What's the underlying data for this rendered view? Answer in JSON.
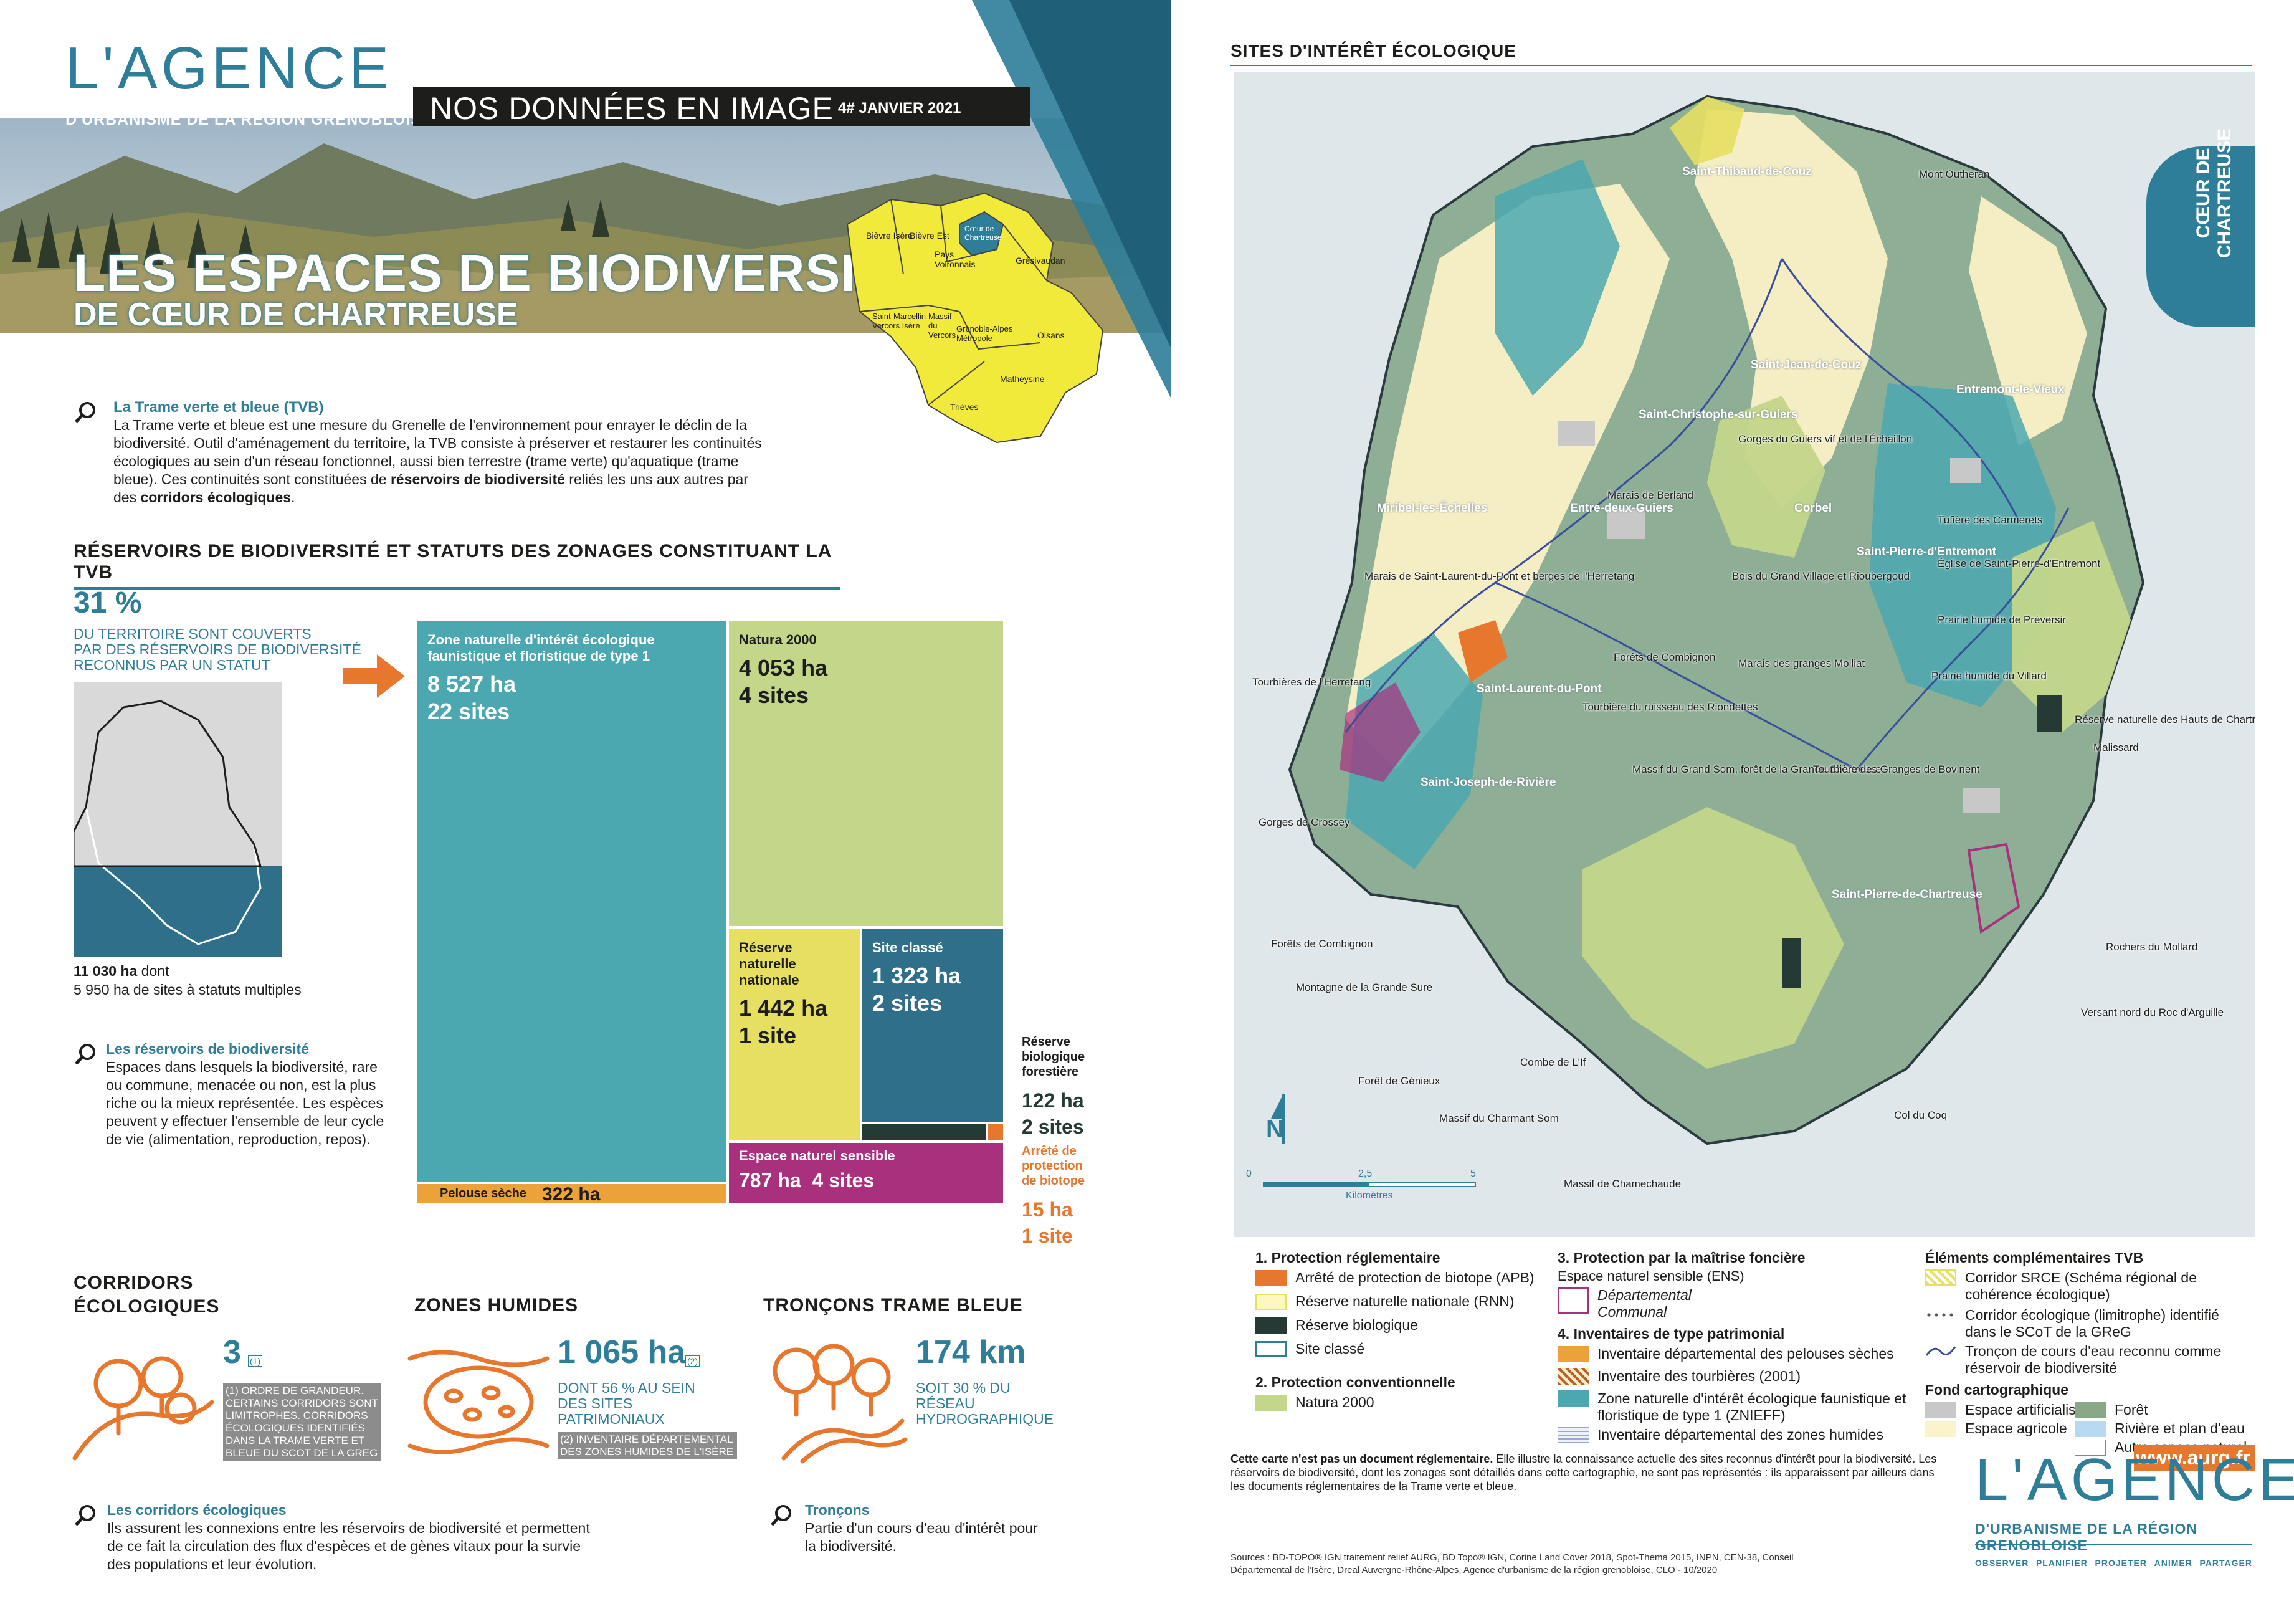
{
  "header": {
    "logo_main": "L'AGENCE",
    "logo_sub": "D'URBANISME DE LA RÉGION GRENOBLOISE",
    "band_title": "NOS DONNÉES EN IMAGE",
    "band_date": "4# JANVIER 2021",
    "title_line1": "LES ESPACES DE BIODIVERSITÉ",
    "title_line2": "DE CŒUR DE CHARTREUSE"
  },
  "region_map": {
    "labels": [
      "Bièvre Isère",
      "Bièvre Est",
      "Pays Voironnais",
      "Cœur de Chartreuse",
      "Grésivaudan",
      "Saint-Marcellin Vercors Isère",
      "Massif du Vercors",
      "Grenoble-Alpes Métropole",
      "Oisans",
      "Matheysine",
      "Trièves"
    ]
  },
  "intro": {
    "heading": "La Trame verte et bleue (TVB)",
    "text": "La Trame verte et bleue est une mesure du Grenelle de l'environnement pour enrayer le déclin de la biodiversité. Outil d'aménagement du territoire, la TVB consiste à préserver et restaurer les continuités écologiques au sein d'un réseau fonctionnel, aussi bien terrestre (trame verte) qu'aquatique (trame bleue). Ces continuités sont constituées de ",
    "bold1": "réservoirs de biodiversité",
    "mid": " reliés les uns aux autres par des ",
    "bold2": "corridors écologiques",
    "end": "."
  },
  "reservoirs": {
    "section_title": "RÉSERVOIRS DE BIODIVERSITÉ ET STATUTS DES ZONAGES CONSTITUANT LA TVB",
    "pct": "31 %",
    "pct_text1": "DU TERRITOIRE SONT COUVERTS",
    "pct_text2": "PAR DES RÉSERVOIRS DE BIODIVERSITÉ",
    "pct_text3": "RECONNUS PAR UN STATUT",
    "total": "11 030 ha",
    "total_suffix": " dont",
    "multi": "5 950 ha de sites à statuts multiples",
    "def_heading": "Les réservoirs de biodiversité",
    "def_text": "Espaces dans lesquels la biodiversité, rare ou commune, menacée ou non, est la plus riche ou la mieux représentée. Les espèces peuvent y effectuer l'ensemble de leur cycle de vie (alimentation, reproduction, repos)."
  },
  "treemap": [
    {
      "label": "Zone naturelle d'intérêt écologique faunistique et floristique de type 1",
      "ha": "8 527 ha",
      "sites": "22 sites",
      "color": "#4ba8b0"
    },
    {
      "label": "Natura 2000",
      "ha": "4 053 ha",
      "sites": "4 sites",
      "color": "#c3d68a"
    },
    {
      "label": "Réserve naturelle nationale",
      "ha": "1 442 ha",
      "sites": "1 site",
      "color": "#e6df62"
    },
    {
      "label": "Site classé",
      "ha": "1 323 ha",
      "sites": "2 sites",
      "color": "#2f6f8a"
    },
    {
      "label": "Espace naturel sensible",
      "ha": "787 ha",
      "sites": "4 sites",
      "color": "#a8307d"
    },
    {
      "label": "Pelouse sèche",
      "ha": "322 ha",
      "color": "#eba23a"
    },
    {
      "label": "Réserve biologique forestière",
      "ha": "122 ha",
      "sites": "2 sites",
      "color": "#263a35"
    },
    {
      "label": "Arrêté de protection de biotope",
      "ha": "15 ha",
      "sites": "1 site",
      "color": "#e8772e"
    }
  ],
  "indicators": {
    "corridors": {
      "title1": "CORRIDORS",
      "title2": "ÉCOLOGIQUES",
      "value": "3",
      "note_ref": "(1)",
      "note": "(1) ORDRE DE GRANDEUR. CERTAINS CORRIDORS SONT LIMITROPHES. CORRIDORS ÉCOLOGIQUES IDENTIFIÉS DANS LA TRAME VERTE ET BLEUE DU SCOT DE LA GREG"
    },
    "zones": {
      "title": "ZONES HUMIDES",
      "value": "1 065 ha",
      "note_ref": "(2)",
      "sub": "DONT 56 % AU SEIN DES SITES PATRIMONIAUX",
      "note": "(2) INVENTAIRE DÉPARTEMENTAL DES ZONES HUMIDES DE L'ISÈRE"
    },
    "troncons": {
      "title": "TRONÇONS TRAME BLEUE",
      "value": "174 km",
      "sub": "SOIT 30 % DU RÉSEAU HYDROGRAPHIQUE"
    }
  },
  "defs": {
    "corr_heading": "Les corridors écologiques",
    "corr_text": "Ils assurent les connexions entre les réservoirs de biodiversité et permettent de ce fait la circulation des flux d'espèces et de gènes vitaux pour la survie des populations et leur évolution.",
    "tron_heading": "Tronçons",
    "tron_text": "Partie d'un cours d'eau d'intérêt pour la biodiversité."
  },
  "map": {
    "title": "SITES D'INTÉRÊT ÉCOLOGIQUE",
    "tab": "CŒUR DE CHARTREUSE",
    "scale": [
      "0",
      "2,5",
      "5"
    ],
    "scale_unit": "Kilomètres",
    "towns": [
      "Saint-Thibaud-de-Couz",
      "Saint-Jean-de-Couz",
      "Saint-Christophe-sur-Guiers",
      "Entremont-le-Vieux",
      "Miribel-les-Échelles",
      "Entre-deux-Guiers",
      "Corbel",
      "Saint-Pierre-d'Entremont",
      "Saint-Laurent-du-Pont",
      "Saint-Joseph-de-Rivière",
      "Saint-Pierre-de-Chartreuse"
    ],
    "labels": [
      "Mont Outheran",
      "Gorges du Guiers vif et de l'Échaillon",
      "Marais de Berland",
      "Tufière des Carmerets",
      "Église de Saint-Pierre-d'Entremont",
      "Marais de Saint-Laurent-du-Pont et berges de l'Herretang",
      "Bois du Grand Village et Rioubergoud",
      "Prairie humide de Préversir",
      "Forêts de Combignon",
      "Marais des granges Molliat",
      "Prairie humide du Villard",
      "Tourbières de l'Herretang",
      "Tourbière du ruisseau des Riondettes",
      "Réserve naturelle des Hauts de Chartreuse",
      "Malissard",
      "Massif du Grand Som, forêt de la Grande Chartreuse",
      "Tourbière des Granges de Bovinent",
      "Gorges de Crossey",
      "Forêts de Combignon",
      "Rochers du Mollard",
      "Montagne de la Grande Sure",
      "Versant nord du Roc d'Arguille",
      "Combe de L'If",
      "Forêt de Génieux",
      "Col du Coq",
      "Massif du Charmant Som",
      "Massif de Chamechaude"
    ]
  },
  "legend": {
    "g1": {
      "title": "1. Protection réglementaire",
      "items": [
        {
          "label": "Arrêté de protection de biotope (APB)",
          "color": "#e8772e"
        },
        {
          "label": "Réserve naturelle nationale (RNN)",
          "color": "#fff7c2"
        },
        {
          "label": "Réserve biologique",
          "color": "#263a35"
        },
        {
          "label": "Site classé",
          "color": "#ffffff"
        }
      ]
    },
    "g2": {
      "title": "2. Protection conventionnelle",
      "items": [
        {
          "label": "Natura 2000",
          "color": "#c3d68a"
        }
      ]
    },
    "g3": {
      "title": "3. Protection par la maîtrise foncière",
      "sub": "Espace naturel sensible (ENS)",
      "items": [
        {
          "label": "Départemental",
          "color": "#a8307d"
        },
        {
          "label": "Communal",
          "color": "#a8307d"
        }
      ]
    },
    "g4": {
      "title": "4. Inventaires de type patrimonial",
      "items": [
        {
          "label": "Inventaire départemental des pelouses sèches",
          "color": "#eba23a"
        },
        {
          "label": "Inventaire des tourbières (2001)",
          "color": "#b8602c"
        },
        {
          "label": "Zone naturelle d'intérêt écologique faunistique et floristique de type 1 (ZNIEFF)",
          "color": "#4ba8b0"
        },
        {
          "label": "Inventaire départemental des zones humides",
          "color": "#c9d2e8"
        }
      ]
    },
    "g5": {
      "title": "Éléments complémentaires TVB",
      "items": [
        {
          "label": "Corridor SRCE (Schéma régional de cohérence écologique)",
          "color": "#e6df62"
        },
        {
          "label": "Corridor écologique (limitrophe) identifié dans le SCoT de la GReG",
          "color": "#555555"
        },
        {
          "label": "Tronçon de cours d'eau reconnu comme réservoir de biodiversité",
          "color": "#3a4f9a"
        }
      ]
    },
    "g6": {
      "title": "Fond cartographique",
      "items": [
        {
          "label": "Espace artificialisé",
          "color": "#c8c8c8"
        },
        {
          "label": "Forêt",
          "color": "#8aa888"
        },
        {
          "label": "Espace agricole",
          "color": "#fbf3c9"
        },
        {
          "label": "Rivière et plan d'eau",
          "color": "#b9d9f2"
        },
        {
          "label": "Autre espace naturel",
          "color": "#ffffff"
        }
      ]
    }
  },
  "footer": {
    "disclaimer_bold": "Cette carte n'est pas un document réglementaire.",
    "disclaimer": " Elle illustre la connaissance actuelle des sites reconnus d'intérêt pour la biodiversité. Les réservoirs de biodiversité, dont les zonages sont détaillés dans cette cartographie, ne sont pas représentés : ils apparaissent par ailleurs dans les documents réglementaires de la Trame verte et bleue.",
    "sources": "Sources : BD-TOPO® IGN traitement relief AURG, BD Topo® IGN, Corine Land Cover 2018, Spot-Thema 2015, INPN, CEN-38, Conseil Départemental de l'Isère, Dreal Auvergne-Rhône-Alpes, Agence d'urbanisme de la région grenobloise, CLO - 10/2020",
    "url": "www.aurg.fr",
    "logo_main": "L'AGENCE",
    "logo_sub": "D'URBANISME DE LA RÉGION GRENOBLOISE",
    "tagline": [
      "OBSERVER",
      "PLANIFIER",
      "PROJETER",
      "ANIMER",
      "PARTAGER"
    ]
  }
}
